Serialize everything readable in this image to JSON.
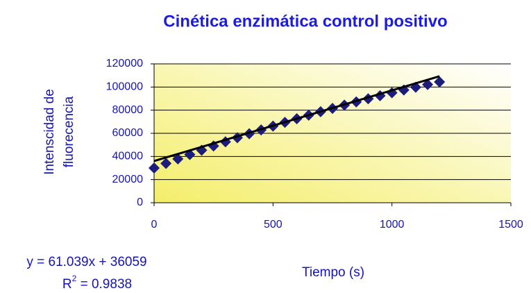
{
  "chart_data": {
    "type": "scatter",
    "title": "Cinética enzimática control positivo",
    "x_label": "Tiempo (s)",
    "y_label": [
      "Intenscidad de",
      "fluorecencia"
    ],
    "x": [
      0,
      50,
      100,
      150,
      200,
      250,
      300,
      350,
      400,
      450,
      500,
      550,
      600,
      650,
      700,
      750,
      800,
      850,
      900,
      950,
      1000,
      1050,
      1100,
      1150,
      1200
    ],
    "values": [
      30000,
      33960,
      37850,
      41660,
      45400,
      49060,
      52650,
      56160,
      59600,
      62960,
      66250,
      69460,
      72600,
      75660,
      78650,
      81560,
      84400,
      87160,
      89850,
      92460,
      95000,
      97460,
      99850,
      102160,
      104400
    ],
    "color": "#1c1c7c",
    "trendline": {
      "x": [
        0,
        1200
      ],
      "values": [
        36059,
        109305.8
      ],
      "color": "#000000"
    },
    "equation": "y = 61.039x + 36059",
    "r_squared": {
      "symbol": "R",
      "exponent": "2",
      "text": " = 0.9838"
    },
    "xlim": [
      0,
      1500
    ],
    "xticks": [
      0,
      500,
      1000,
      1500
    ],
    "ylim": [
      0,
      120000
    ],
    "yticks": [
      0,
      20000,
      40000,
      60000,
      80000,
      100000,
      120000
    ],
    "grid": true
  }
}
